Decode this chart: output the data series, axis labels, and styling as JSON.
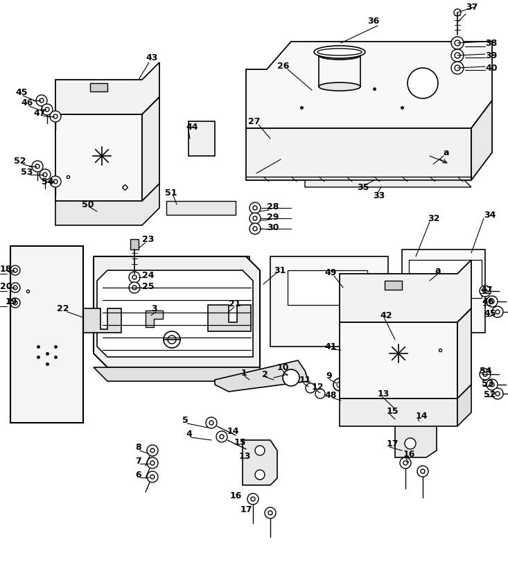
{
  "bg_color": "#ffffff",
  "line_color": "#000000",
  "fig_width": 7.33,
  "fig_height": 8.21,
  "dpi": 100
}
